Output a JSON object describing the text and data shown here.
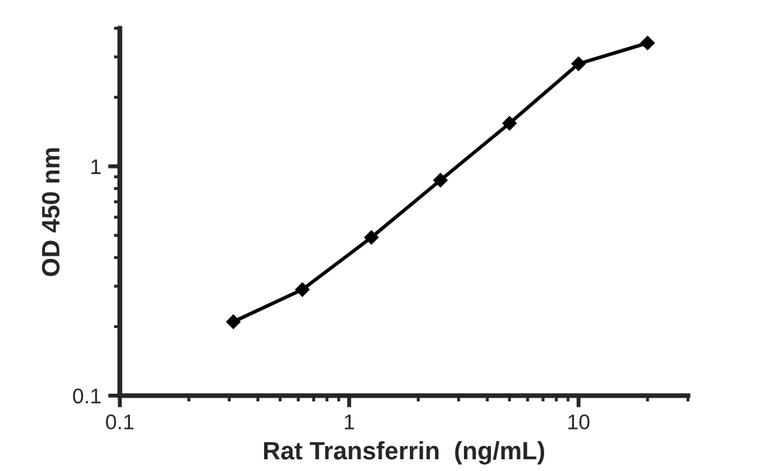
{
  "chart_data": {
    "type": "line",
    "xlabel": "Rat Transferrin  (ng/mL)",
    "ylabel": "OD 450 nm",
    "log": "xy",
    "x": [
      0.3125,
      0.625,
      1.25,
      2.5,
      5,
      10,
      20
    ],
    "series": [
      {
        "color": "#000000",
        "values": [
          0.21,
          0.29,
          0.49,
          0.87,
          1.54,
          2.8,
          3.45
        ]
      }
    ],
    "xlim": [
      0.1,
      30
    ],
    "ylim": [
      0.1,
      4
    ],
    "xticks": [
      {
        "value": 0.1,
        "label": "0.1"
      },
      1,
      10
    ],
    "yticks": [
      {
        "value": 0.1,
        "label": "0.1"
      },
      1
    ],
    "marker": "diamond",
    "line_style": "solid",
    "grid": false,
    "legend": false
  }
}
